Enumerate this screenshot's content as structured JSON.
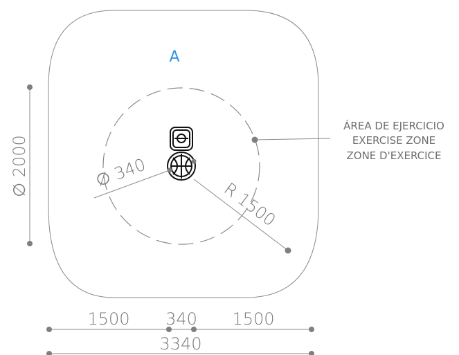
{
  "zone_letter": "A",
  "zone_label": {
    "line1": "ÁREA DE EJERCICIO",
    "line2": "EXERCISE ZONE",
    "line3": "ZONE D'EXERCICE"
  },
  "dimensions": {
    "diameter_vertical": "∅ 2000",
    "diameter_equipment": "∅ 340",
    "radius_outer": "R 1500",
    "bottom_left": "1500",
    "bottom_middle": "340",
    "bottom_right": "1500",
    "total_width": "3340"
  },
  "colors": {
    "line": "#8a8a8a",
    "dot": "#7f7f7f",
    "letter": "#2f95e8",
    "equipment": "#111111"
  }
}
